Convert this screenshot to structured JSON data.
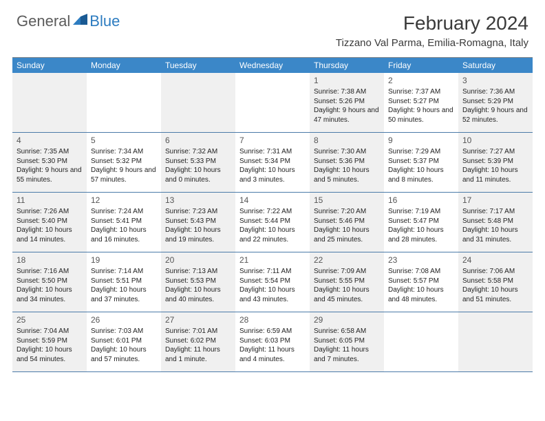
{
  "brand": {
    "part1": "General",
    "part2": "Blue"
  },
  "title": "February 2024",
  "location": "Tizzano Val Parma, Emilia-Romagna, Italy",
  "colors": {
    "header_bg": "#3b87c8",
    "header_text": "#ffffff",
    "shaded_bg": "#f0f0f0",
    "border": "#4a7aa8",
    "brand_gray": "#5b5b5b",
    "brand_blue": "#2d7cc0"
  },
  "day_headers": [
    "Sunday",
    "Monday",
    "Tuesday",
    "Wednesday",
    "Thursday",
    "Friday",
    "Saturday"
  ],
  "weeks": [
    [
      {
        "shaded": true
      },
      {
        "shaded": false
      },
      {
        "shaded": true
      },
      {
        "shaded": false
      },
      {
        "shaded": true,
        "num": "1",
        "sunrise": "Sunrise: 7:38 AM",
        "sunset": "Sunset: 5:26 PM",
        "daylight": "Daylight: 9 hours and 47 minutes."
      },
      {
        "shaded": false,
        "num": "2",
        "sunrise": "Sunrise: 7:37 AM",
        "sunset": "Sunset: 5:27 PM",
        "daylight": "Daylight: 9 hours and 50 minutes."
      },
      {
        "shaded": true,
        "num": "3",
        "sunrise": "Sunrise: 7:36 AM",
        "sunset": "Sunset: 5:29 PM",
        "daylight": "Daylight: 9 hours and 52 minutes."
      }
    ],
    [
      {
        "shaded": true,
        "num": "4",
        "sunrise": "Sunrise: 7:35 AM",
        "sunset": "Sunset: 5:30 PM",
        "daylight": "Daylight: 9 hours and 55 minutes."
      },
      {
        "shaded": false,
        "num": "5",
        "sunrise": "Sunrise: 7:34 AM",
        "sunset": "Sunset: 5:32 PM",
        "daylight": "Daylight: 9 hours and 57 minutes."
      },
      {
        "shaded": true,
        "num": "6",
        "sunrise": "Sunrise: 7:32 AM",
        "sunset": "Sunset: 5:33 PM",
        "daylight": "Daylight: 10 hours and 0 minutes."
      },
      {
        "shaded": false,
        "num": "7",
        "sunrise": "Sunrise: 7:31 AM",
        "sunset": "Sunset: 5:34 PM",
        "daylight": "Daylight: 10 hours and 3 minutes."
      },
      {
        "shaded": true,
        "num": "8",
        "sunrise": "Sunrise: 7:30 AM",
        "sunset": "Sunset: 5:36 PM",
        "daylight": "Daylight: 10 hours and 5 minutes."
      },
      {
        "shaded": false,
        "num": "9",
        "sunrise": "Sunrise: 7:29 AM",
        "sunset": "Sunset: 5:37 PM",
        "daylight": "Daylight: 10 hours and 8 minutes."
      },
      {
        "shaded": true,
        "num": "10",
        "sunrise": "Sunrise: 7:27 AM",
        "sunset": "Sunset: 5:39 PM",
        "daylight": "Daylight: 10 hours and 11 minutes."
      }
    ],
    [
      {
        "shaded": true,
        "num": "11",
        "sunrise": "Sunrise: 7:26 AM",
        "sunset": "Sunset: 5:40 PM",
        "daylight": "Daylight: 10 hours and 14 minutes."
      },
      {
        "shaded": false,
        "num": "12",
        "sunrise": "Sunrise: 7:24 AM",
        "sunset": "Sunset: 5:41 PM",
        "daylight": "Daylight: 10 hours and 16 minutes."
      },
      {
        "shaded": true,
        "num": "13",
        "sunrise": "Sunrise: 7:23 AM",
        "sunset": "Sunset: 5:43 PM",
        "daylight": "Daylight: 10 hours and 19 minutes."
      },
      {
        "shaded": false,
        "num": "14",
        "sunrise": "Sunrise: 7:22 AM",
        "sunset": "Sunset: 5:44 PM",
        "daylight": "Daylight: 10 hours and 22 minutes."
      },
      {
        "shaded": true,
        "num": "15",
        "sunrise": "Sunrise: 7:20 AM",
        "sunset": "Sunset: 5:46 PM",
        "daylight": "Daylight: 10 hours and 25 minutes."
      },
      {
        "shaded": false,
        "num": "16",
        "sunrise": "Sunrise: 7:19 AM",
        "sunset": "Sunset: 5:47 PM",
        "daylight": "Daylight: 10 hours and 28 minutes."
      },
      {
        "shaded": true,
        "num": "17",
        "sunrise": "Sunrise: 7:17 AM",
        "sunset": "Sunset: 5:48 PM",
        "daylight": "Daylight: 10 hours and 31 minutes."
      }
    ],
    [
      {
        "shaded": true,
        "num": "18",
        "sunrise": "Sunrise: 7:16 AM",
        "sunset": "Sunset: 5:50 PM",
        "daylight": "Daylight: 10 hours and 34 minutes."
      },
      {
        "shaded": false,
        "num": "19",
        "sunrise": "Sunrise: 7:14 AM",
        "sunset": "Sunset: 5:51 PM",
        "daylight": "Daylight: 10 hours and 37 minutes."
      },
      {
        "shaded": true,
        "num": "20",
        "sunrise": "Sunrise: 7:13 AM",
        "sunset": "Sunset: 5:53 PM",
        "daylight": "Daylight: 10 hours and 40 minutes."
      },
      {
        "shaded": false,
        "num": "21",
        "sunrise": "Sunrise: 7:11 AM",
        "sunset": "Sunset: 5:54 PM",
        "daylight": "Daylight: 10 hours and 43 minutes."
      },
      {
        "shaded": true,
        "num": "22",
        "sunrise": "Sunrise: 7:09 AM",
        "sunset": "Sunset: 5:55 PM",
        "daylight": "Daylight: 10 hours and 45 minutes."
      },
      {
        "shaded": false,
        "num": "23",
        "sunrise": "Sunrise: 7:08 AM",
        "sunset": "Sunset: 5:57 PM",
        "daylight": "Daylight: 10 hours and 48 minutes."
      },
      {
        "shaded": true,
        "num": "24",
        "sunrise": "Sunrise: 7:06 AM",
        "sunset": "Sunset: 5:58 PM",
        "daylight": "Daylight: 10 hours and 51 minutes."
      }
    ],
    [
      {
        "shaded": true,
        "num": "25",
        "sunrise": "Sunrise: 7:04 AM",
        "sunset": "Sunset: 5:59 PM",
        "daylight": "Daylight: 10 hours and 54 minutes."
      },
      {
        "shaded": false,
        "num": "26",
        "sunrise": "Sunrise: 7:03 AM",
        "sunset": "Sunset: 6:01 PM",
        "daylight": "Daylight: 10 hours and 57 minutes."
      },
      {
        "shaded": true,
        "num": "27",
        "sunrise": "Sunrise: 7:01 AM",
        "sunset": "Sunset: 6:02 PM",
        "daylight": "Daylight: 11 hours and 1 minute."
      },
      {
        "shaded": false,
        "num": "28",
        "sunrise": "Sunrise: 6:59 AM",
        "sunset": "Sunset: 6:03 PM",
        "daylight": "Daylight: 11 hours and 4 minutes."
      },
      {
        "shaded": true,
        "num": "29",
        "sunrise": "Sunrise: 6:58 AM",
        "sunset": "Sunset: 6:05 PM",
        "daylight": "Daylight: 11 hours and 7 minutes."
      },
      {
        "shaded": false
      },
      {
        "shaded": true
      }
    ]
  ]
}
